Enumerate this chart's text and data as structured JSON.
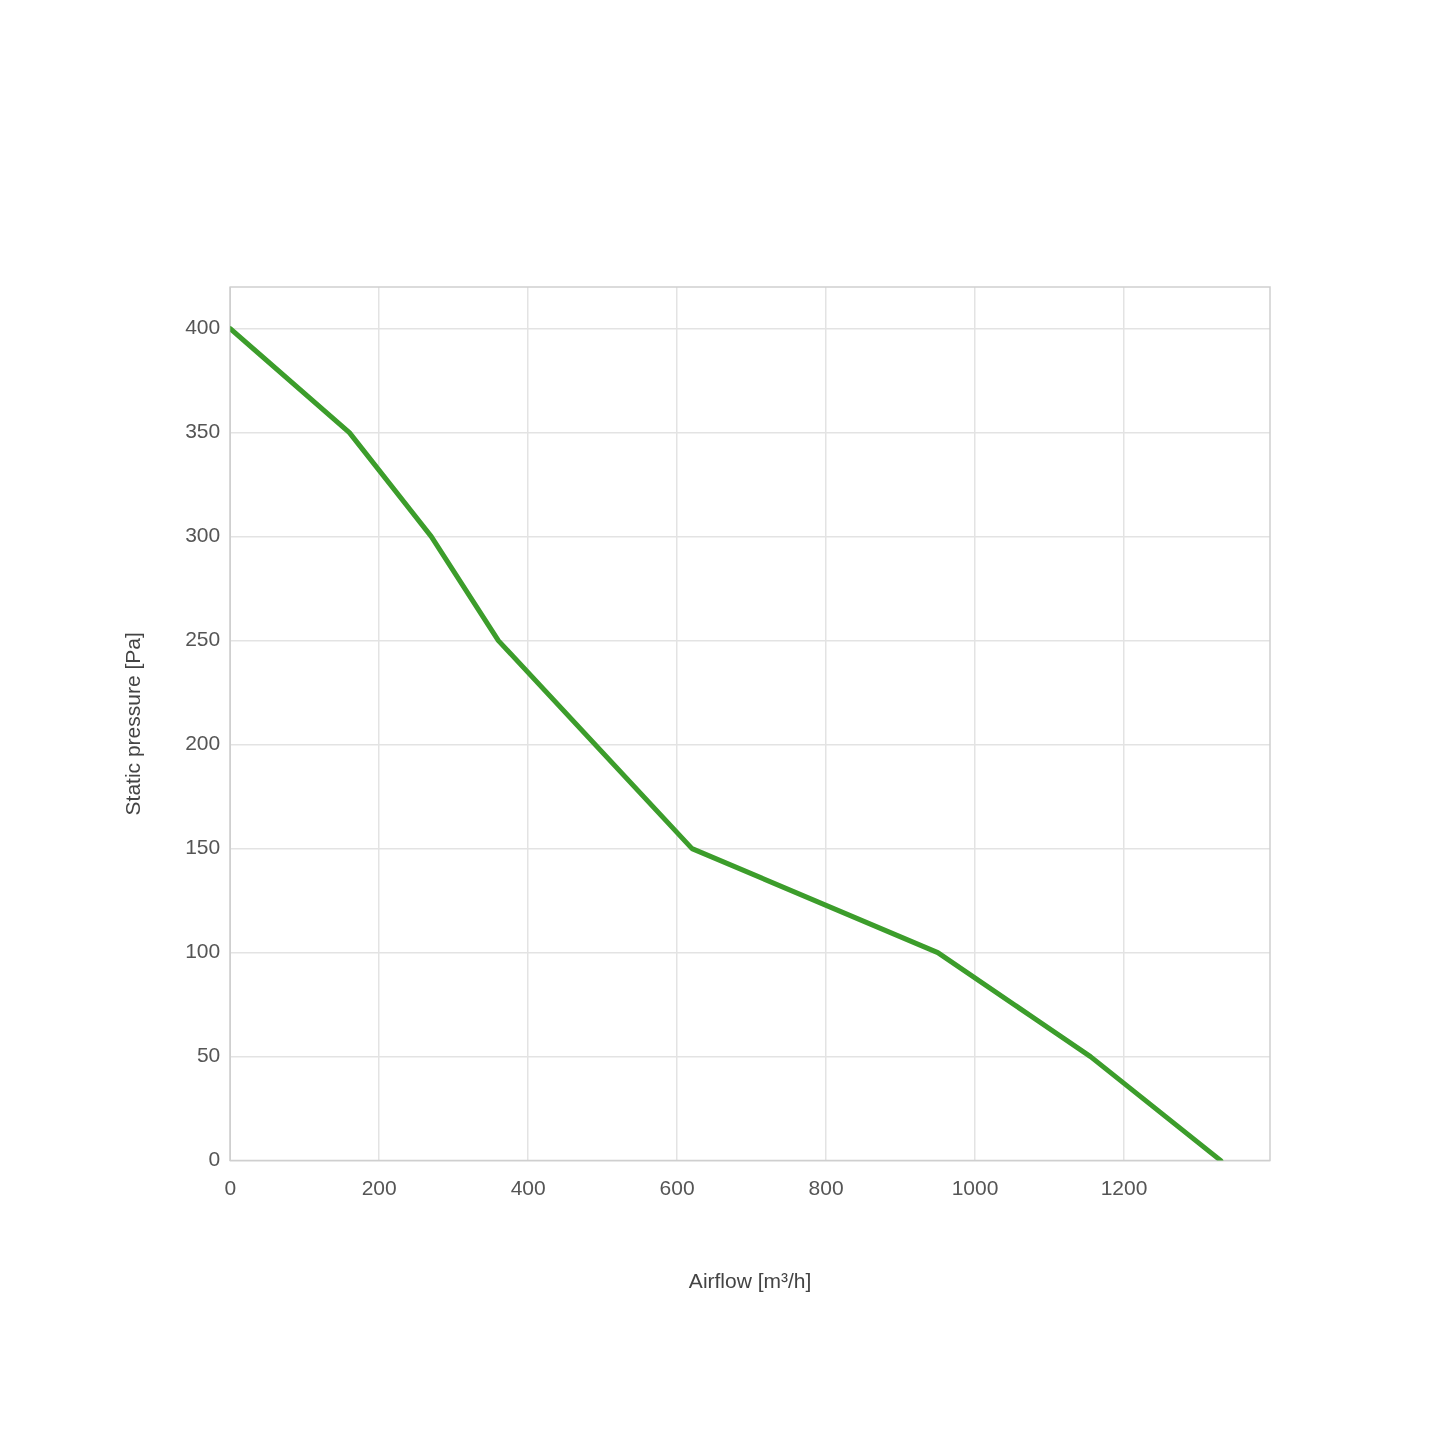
{
  "chart_data": {
    "type": "line",
    "xlabel": "Airflow [m³/h]",
    "ylabel": "Static pressure [Pa]",
    "x": [
      0,
      160,
      270,
      360,
      620,
      950,
      1155,
      1330
    ],
    "series": [
      {
        "color": "#3c9d2b",
        "values": [
          400,
          350,
          300,
          250,
          150,
          100,
          50,
          0
        ]
      }
    ],
    "xlim": [
      0,
      1396
    ],
    "ylim": [
      0,
      420
    ],
    "xticks": [
      0,
      200,
      400,
      600,
      800,
      1000,
      1200
    ],
    "yticks": [
      0,
      50,
      100,
      150,
      200,
      250,
      300,
      350,
      400
    ],
    "grid": true,
    "legend": false,
    "marker": "none",
    "line_style": "solid"
  }
}
